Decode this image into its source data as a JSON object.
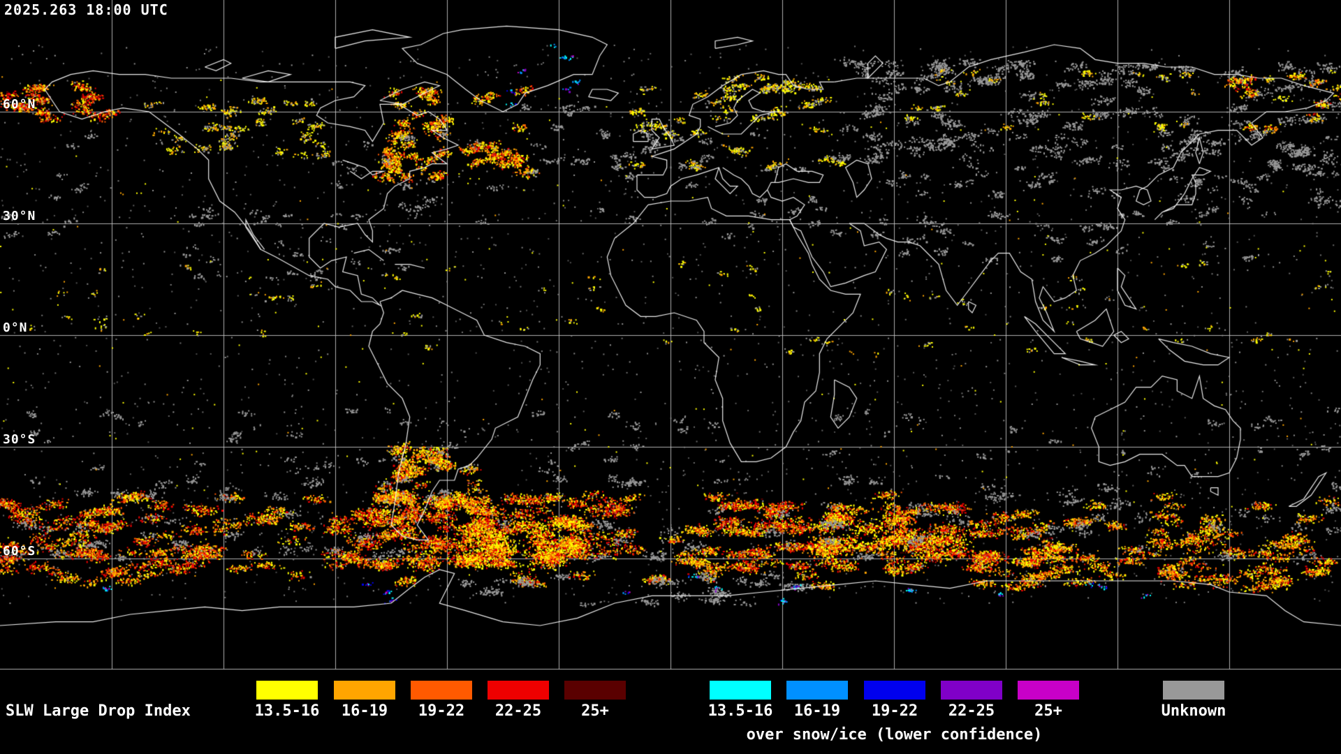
{
  "header": {
    "timestamp": "2025.263 18:00 UTC"
  },
  "map": {
    "latitude_labels": [
      {
        "label": "60°N",
        "lat": 60
      },
      {
        "label": "30°N",
        "lat": 30
      },
      {
        "label": "0°N",
        "lat": 0
      },
      {
        "label": "30°S",
        "lat": -30
      },
      {
        "label": "60°S",
        "lat": -60
      }
    ],
    "grid_interval_deg": 30
  },
  "legend": {
    "title": "SLW Large Drop Index",
    "main_bins": [
      {
        "label": "13.5-16",
        "color": "#ffff00"
      },
      {
        "label": "16-19",
        "color": "#ffa500"
      },
      {
        "label": "19-22",
        "color": "#ff5a00"
      },
      {
        "label": "22-25",
        "color": "#ee0000"
      },
      {
        "label": "25+",
        "color": "#5a0000"
      }
    ],
    "snow_ice": {
      "caption": "over snow/ice (lower confidence)",
      "bins": [
        {
          "label": "13.5-16",
          "color": "#00ffff"
        },
        {
          "label": "16-19",
          "color": "#0090ff"
        },
        {
          "label": "19-22",
          "color": "#0000ee"
        },
        {
          "label": "22-25",
          "color": "#8000c8"
        },
        {
          "label": "25+",
          "color": "#c800c8"
        }
      ]
    },
    "unknown": {
      "label": "Unknown",
      "color": "#999999"
    }
  },
  "colors": {
    "background": "#000000",
    "grid": "#cccccc",
    "coastline": "#ffffff",
    "text": "#ffffff"
  }
}
